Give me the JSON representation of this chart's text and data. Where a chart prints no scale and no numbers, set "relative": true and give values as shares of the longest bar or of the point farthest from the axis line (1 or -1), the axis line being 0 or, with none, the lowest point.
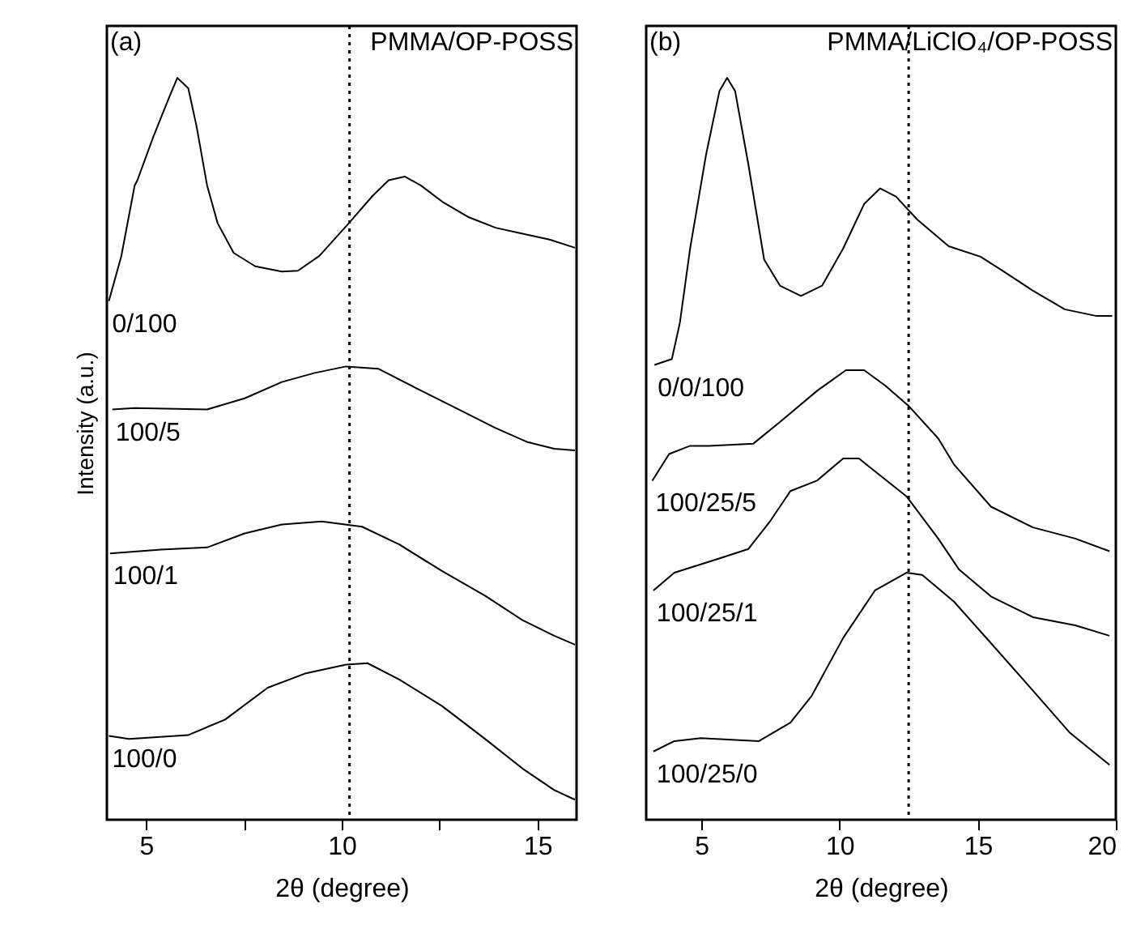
{
  "chart_data": [
    {
      "type": "line",
      "relative": true,
      "xlabel": "2θ (degree)",
      "ylabel": "Intensity (a.u.)",
      "annotations": [
        "(a)",
        "PMMA/OP-POSS"
      ],
      "xlim": [
        4,
        16
      ],
      "xticks": [
        5,
        {
          "value": 7.5,
          "label": null
        },
        10,
        {
          "value": 12.5,
          "label": null
        },
        15
      ],
      "line_style": "solid",
      "ref_lines": [
        {
          "axis": "x",
          "value": 10.2,
          "line_style": "dotted"
        }
      ],
      "series": [
        {
          "name": "0/100",
          "color": "#000000",
          "x": [
            4.05,
            4.37,
            4.71,
            4.78,
            5.19,
            5.6,
            5.8,
            6.08,
            6.29,
            6.56,
            6.83,
            7.24,
            7.79,
            8.47,
            8.88,
            9.43,
            10.18,
            10.79,
            11.2,
            11.61,
            12.02,
            12.57,
            13.25,
            13.93,
            14.62,
            15.31,
            15.96
          ],
          "values": [
            0.699,
            0.76,
            0.855,
            0.862,
            0.921,
            0.975,
            1.0,
            0.986,
            0.935,
            0.855,
            0.804,
            0.764,
            0.746,
            0.739,
            0.74,
            0.76,
            0.804,
            0.841,
            0.862,
            0.867,
            0.855,
            0.833,
            0.812,
            0.798,
            0.79,
            0.782,
            0.771
          ]
        },
        {
          "name": "100/5",
          "color": "#000000",
          "x": [
            4.14,
            4.71,
            6.56,
            7.52,
            8.47,
            9.29,
            10.11,
            10.93,
            11.89,
            12.84,
            13.93,
            14.75,
            15.43,
            15.96
          ],
          "values": [
            0.553,
            0.555,
            0.553,
            0.568,
            0.59,
            0.602,
            0.611,
            0.608,
            0.582,
            0.557,
            0.528,
            0.509,
            0.5,
            0.498
          ]
        },
        {
          "name": "100/1",
          "color": "#000000",
          "x": [
            4.08,
            5.38,
            6.56,
            7.52,
            8.47,
            9.49,
            10.52,
            11.47,
            12.57,
            13.66,
            14.62,
            15.43,
            15.96
          ],
          "values": [
            0.359,
            0.364,
            0.367,
            0.386,
            0.398,
            0.402,
            0.395,
            0.371,
            0.335,
            0.302,
            0.269,
            0.248,
            0.236
          ]
        },
        {
          "name": "100/0",
          "color": "#000000",
          "x": [
            4.05,
            4.57,
            6.07,
            7.02,
            8.11,
            9.06,
            10.11,
            10.66,
            11.47,
            12.57,
            13.66,
            14.62,
            15.43,
            15.96
          ],
          "values": [
            0.113,
            0.109,
            0.114,
            0.135,
            0.178,
            0.197,
            0.209,
            0.211,
            0.189,
            0.153,
            0.109,
            0.069,
            0.04,
            0.027
          ]
        }
      ]
    },
    {
      "type": "line",
      "relative": true,
      "xlabel": "2θ (degree)",
      "annotations": [
        "(b)",
        "PMMA/LiClO₄/OP-POSS"
      ],
      "xlim": [
        3,
        20
      ],
      "xticks": [
        5,
        10,
        15,
        20
      ],
      "line_style": "solid",
      "ref_lines": [
        {
          "axis": "x",
          "value": 12.5,
          "line_style": "dotted"
        }
      ],
      "series": [
        {
          "name": "0/0/100",
          "color": "#000000",
          "x": [
            3.3,
            3.93,
            4.22,
            4.59,
            5.17,
            5.65,
            5.93,
            6.22,
            6.7,
            7.27,
            7.84,
            8.6,
            9.37,
            10.13,
            10.89,
            11.47,
            12.04,
            12.81,
            13.95,
            15.1,
            15.86,
            17.0,
            18.15,
            19.3,
            19.87
          ],
          "values": [
            0.613,
            0.621,
            0.67,
            0.77,
            0.897,
            0.982,
            1.0,
            0.982,
            0.883,
            0.755,
            0.72,
            0.706,
            0.72,
            0.77,
            0.83,
            0.851,
            0.84,
            0.809,
            0.773,
            0.759,
            0.741,
            0.713,
            0.688,
            0.679,
            0.679
          ]
        },
        {
          "name": "100/25/5",
          "color": "#000000",
          "x": [
            3.22,
            3.83,
            4.59,
            5.26,
            6.88,
            7.84,
            9.18,
            10.23,
            10.89,
            11.66,
            12.52,
            13.57,
            14.14,
            15.48,
            17.0,
            18.53,
            19.77
          ],
          "values": [
            0.457,
            0.493,
            0.504,
            0.504,
            0.507,
            0.536,
            0.578,
            0.606,
            0.606,
            0.585,
            0.557,
            0.514,
            0.479,
            0.422,
            0.394,
            0.379,
            0.362
          ]
        },
        {
          "name": "100/25/1",
          "color": "#000000",
          "x": [
            3.26,
            4.02,
            5.55,
            6.7,
            7.46,
            8.22,
            9.18,
            10.13,
            10.7,
            11.47,
            12.42,
            13.57,
            14.33,
            15.48,
            17.0,
            18.53,
            19.77
          ],
          "values": [
            0.309,
            0.333,
            0.351,
            0.365,
            0.401,
            0.443,
            0.457,
            0.487,
            0.487,
            0.464,
            0.436,
            0.379,
            0.337,
            0.301,
            0.273,
            0.262,
            0.248
          ]
        },
        {
          "name": "100/25/0",
          "color": "#000000",
          "x": [
            3.26,
            4.02,
            4.98,
            7.08,
            8.22,
            8.99,
            10.13,
            11.28,
            12.42,
            12.99,
            14.14,
            15.48,
            17.0,
            18.34,
            19.77
          ],
          "values": [
            0.092,
            0.106,
            0.11,
            0.106,
            0.131,
            0.167,
            0.245,
            0.309,
            0.333,
            0.33,
            0.294,
            0.238,
            0.174,
            0.117,
            0.074
          ]
        }
      ]
    }
  ]
}
